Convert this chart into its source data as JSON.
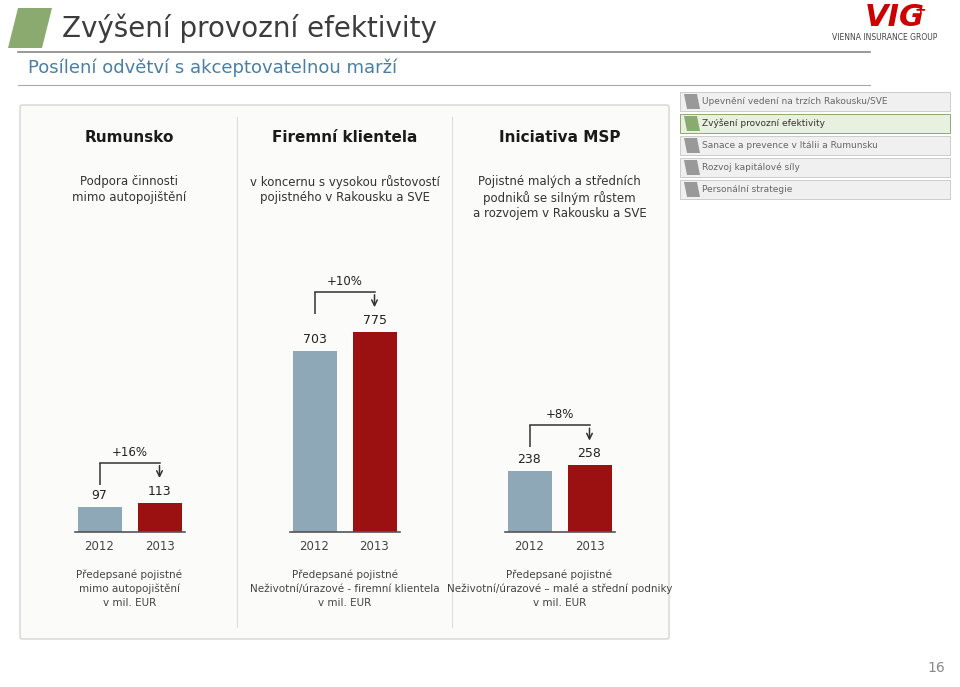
{
  "title": "Zvýšení provozní efektivity",
  "subtitle": "Posílení odvětví s akceptovatelnou marží",
  "background_color": "#ffffff",
  "groups": [
    {
      "title": "Rumunsko",
      "subtitle_line1": "Podpora činnosti",
      "subtitle_line2": "mimo autopojištění",
      "subtitle_line3": "",
      "values": [
        97,
        113
      ],
      "years": [
        "2012",
        "2013"
      ],
      "growth": "+16%",
      "footer_line1": "Předepsané pojistné",
      "footer_line2": "mimo autopojištění",
      "footer_line3": "v mil. EUR"
    },
    {
      "title": "Firemní klientela",
      "subtitle_line1": "v koncernu s vysokou růstovostí",
      "subtitle_line2": "pojistného v Rakousku a SVE",
      "subtitle_line3": "",
      "values": [
        703,
        775
      ],
      "years": [
        "2012",
        "2013"
      ],
      "growth": "+10%",
      "footer_line1": "Předepsané pojistné",
      "footer_line2": "Neživotní/úrazové - firemní klientela",
      "footer_line3": "v mil. EUR"
    },
    {
      "title": "Iniciativa MSP",
      "subtitle_line1": "Pojistné malých a středních",
      "subtitle_line2": "podniků se silným růstem",
      "subtitle_line3": "a rozvojem v Rakousku a SVE",
      "values": [
        238,
        258
      ],
      "years": [
        "2012",
        "2013"
      ],
      "growth": "+8%",
      "footer_line1": "Předepsané pojistné",
      "footer_line2": "Neživotní/úrazové – malé a střední podniky",
      "footer_line3": "v mil. EUR"
    }
  ],
  "bar_color_2012": "#8fa8b8",
  "bar_color_2013": "#9b1010",
  "menu_items": [
    "Upevnění vedení na trzích Rakousku/SVE",
    "Zvýšení provozní efektivity",
    "Sanace a prevence v Itálii a Rumunsku",
    "Rozvoj kapitálové síly",
    "Personální strategie"
  ],
  "menu_active_index": 1,
  "logo_parallelogram_color": "#8aaa70",
  "page_number": "16"
}
